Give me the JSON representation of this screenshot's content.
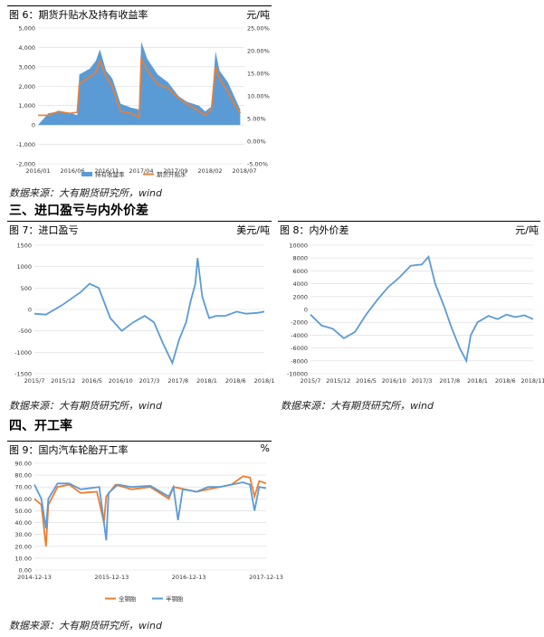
{
  "sections": {
    "s3": "三、进口盈亏与内外价差",
    "s4": "四、开工率"
  },
  "source_text": "数据来源：大有期货研究所，wind",
  "chart_data": [
    {
      "id": "fig6",
      "type": "area",
      "title": "图 6：期货升贴水及持有收益率",
      "unit": "元/吨",
      "x_ticks": [
        "2016/01",
        "2016/06",
        "2016/11",
        "2017/04",
        "2017/09",
        "2018/02",
        "2018/07"
      ],
      "y_left": {
        "min": -2000,
        "max": 5000,
        "ticks": [
          "-2,000",
          "-1,000",
          "0",
          "1,000",
          "2,000",
          "3,000",
          "4,000",
          "5,000"
        ]
      },
      "y_right": {
        "min": -5,
        "max": 25,
        "ticks": [
          "-5.00%",
          "0.00%",
          "5.00%",
          "10.00%",
          "15.00%",
          "20.00%",
          "25.00%"
        ]
      },
      "legend": [
        "持有收益率",
        "期货升贴水"
      ],
      "colors": {
        "area": "#5b9bd5",
        "line": "#ed7d31"
      },
      "series": [
        {
          "name": "持有收益率",
          "axis": "left",
          "points": [
            [
              0,
              0
            ],
            [
              0.05,
              600
            ],
            [
              0.1,
              700
            ],
            [
              0.15,
              650
            ],
            [
              0.19,
              500
            ],
            [
              0.2,
              2600
            ],
            [
              0.25,
              2900
            ],
            [
              0.28,
              3300
            ],
            [
              0.3,
              3900
            ],
            [
              0.33,
              2800
            ],
            [
              0.36,
              2400
            ],
            [
              0.4,
              1100
            ],
            [
              0.45,
              900
            ],
            [
              0.49,
              800
            ],
            [
              0.5,
              4300
            ],
            [
              0.53,
              3400
            ],
            [
              0.58,
              2600
            ],
            [
              0.63,
              2200
            ],
            [
              0.68,
              1500
            ],
            [
              0.72,
              1200
            ],
            [
              0.78,
              1000
            ],
            [
              0.81,
              700
            ],
            [
              0.84,
              950
            ],
            [
              0.86,
              3800
            ],
            [
              0.88,
              2800
            ],
            [
              0.92,
              2200
            ],
            [
              0.95,
              1500
            ],
            [
              0.98,
              800
            ]
          ]
        },
        {
          "name": "期货升贴水",
          "axis": "left",
          "points": [
            [
              0,
              500
            ],
            [
              0.05,
              500
            ],
            [
              0.1,
              700
            ],
            [
              0.15,
              600
            ],
            [
              0.19,
              650
            ],
            [
              0.2,
              2100
            ],
            [
              0.25,
              2500
            ],
            [
              0.28,
              2700
            ],
            [
              0.3,
              3300
            ],
            [
              0.33,
              2500
            ],
            [
              0.36,
              2000
            ],
            [
              0.4,
              700
            ],
            [
              0.45,
              600
            ],
            [
              0.49,
              400
            ],
            [
              0.5,
              3400
            ],
            [
              0.53,
              2800
            ],
            [
              0.58,
              2100
            ],
            [
              0.63,
              1900
            ],
            [
              0.68,
              1400
            ],
            [
              0.72,
              1100
            ],
            [
              0.78,
              700
            ],
            [
              0.81,
              500
            ],
            [
              0.84,
              800
            ],
            [
              0.86,
              3000
            ],
            [
              0.88,
              2400
            ],
            [
              0.92,
              1700
            ],
            [
              0.95,
              1100
            ],
            [
              0.98,
              600
            ]
          ]
        }
      ]
    },
    {
      "id": "fig7",
      "type": "line",
      "title": "图 7：进口盈亏",
      "unit": "美元/吨",
      "x_ticks": [
        "2015/7",
        "2015/12",
        "2016/5",
        "2016/10",
        "2017/3",
        "2017/8",
        "2018/1",
        "2018/6",
        "2018/1"
      ],
      "y": {
        "min": -1500,
        "max": 1500,
        "ticks": [
          "-1500",
          "-1000",
          "-500",
          "0",
          "500",
          "1000",
          "1500"
        ]
      },
      "color": "#5b9bd5",
      "points": [
        [
          0,
          -100
        ],
        [
          0.05,
          -120
        ],
        [
          0.12,
          100
        ],
        [
          0.2,
          400
        ],
        [
          0.24,
          600
        ],
        [
          0.28,
          500
        ],
        [
          0.33,
          -200
        ],
        [
          0.38,
          -500
        ],
        [
          0.43,
          -300
        ],
        [
          0.48,
          -150
        ],
        [
          0.52,
          -300
        ],
        [
          0.56,
          -800
        ],
        [
          0.6,
          -1250
        ],
        [
          0.63,
          -700
        ],
        [
          0.66,
          -300
        ],
        [
          0.68,
          200
        ],
        [
          0.7,
          600
        ],
        [
          0.71,
          1200
        ],
        [
          0.73,
          300
        ],
        [
          0.76,
          -200
        ],
        [
          0.79,
          -150
        ],
        [
          0.83,
          -150
        ],
        [
          0.88,
          -50
        ],
        [
          0.92,
          -100
        ],
        [
          0.97,
          -80
        ],
        [
          1,
          -50
        ]
      ]
    },
    {
      "id": "fig8",
      "type": "line",
      "title": "图 8：内外价差",
      "unit": "元/吨",
      "x_ticks": [
        "2015/7",
        "2015/12",
        "2016/5",
        "2016/10",
        "2017/3",
        "2017/8",
        "2018/1",
        "2018/6",
        "2018/11"
      ],
      "y": {
        "min": -10000,
        "max": 10000,
        "ticks": [
          "-10000",
          "-8000",
          "-6000",
          "-4000",
          "-2000",
          "0",
          "2000",
          "4000",
          "6000",
          "8000",
          "10000"
        ]
      },
      "color": "#5b9bd5",
      "points": [
        [
          0,
          -800
        ],
        [
          0.05,
          -2500
        ],
        [
          0.1,
          -3000
        ],
        [
          0.15,
          -4500
        ],
        [
          0.2,
          -3500
        ],
        [
          0.25,
          -800
        ],
        [
          0.3,
          1500
        ],
        [
          0.35,
          3500
        ],
        [
          0.4,
          5000
        ],
        [
          0.45,
          6800
        ],
        [
          0.5,
          7000
        ],
        [
          0.53,
          8200
        ],
        [
          0.56,
          4000
        ],
        [
          0.6,
          500
        ],
        [
          0.63,
          -2500
        ],
        [
          0.67,
          -6000
        ],
        [
          0.7,
          -8000
        ],
        [
          0.72,
          -4000
        ],
        [
          0.75,
          -2000
        ],
        [
          0.8,
          -1000
        ],
        [
          0.84,
          -1500
        ],
        [
          0.88,
          -800
        ],
        [
          0.92,
          -1200
        ],
        [
          0.96,
          -900
        ],
        [
          1,
          -1500
        ]
      ]
    },
    {
      "id": "fig9",
      "type": "line",
      "title": "图 9：国内汽车轮胎开工率",
      "unit": "%",
      "x_ticks": [
        "2014-12-13",
        "2015-12-13",
        "2016-12-13",
        "2017-12-13"
      ],
      "y": {
        "min": 0,
        "max": 90,
        "ticks": [
          "0.00",
          "10.00",
          "20.00",
          "30.00",
          "40.00",
          "50.00",
          "60.00",
          "70.00",
          "80.00",
          "90.00"
        ]
      },
      "legend": [
        "全钢胎",
        "半钢胎"
      ],
      "series": [
        {
          "name": "全钢胎",
          "color": "#ed7d31",
          "points": [
            [
              0,
              60
            ],
            [
              0.03,
              55
            ],
            [
              0.05,
              20
            ],
            [
              0.06,
              55
            ],
            [
              0.1,
              70
            ],
            [
              0.15,
              72
            ],
            [
              0.2,
              65
            ],
            [
              0.27,
              66
            ],
            [
              0.3,
              40
            ],
            [
              0.31,
              62
            ],
            [
              0.35,
              72
            ],
            [
              0.42,
              68
            ],
            [
              0.5,
              70
            ],
            [
              0.58,
              60
            ],
            [
              0.6,
              70
            ],
            [
              0.65,
              68
            ],
            [
              0.7,
              66
            ],
            [
              0.75,
              68
            ],
            [
              0.8,
              70
            ],
            [
              0.85,
              72
            ],
            [
              0.9,
              79
            ],
            [
              0.93,
              78
            ],
            [
              0.95,
              62
            ],
            [
              0.97,
              75
            ],
            [
              1,
              73
            ]
          ]
        },
        {
          "name": "半钢胎",
          "color": "#5b9bd5",
          "points": [
            [
              0,
              72
            ],
            [
              0.03,
              60
            ],
            [
              0.05,
              35
            ],
            [
              0.06,
              60
            ],
            [
              0.1,
              73
            ],
            [
              0.15,
              73
            ],
            [
              0.2,
              68
            ],
            [
              0.28,
              70
            ],
            [
              0.31,
              25
            ],
            [
              0.32,
              65
            ],
            [
              0.36,
              72
            ],
            [
              0.42,
              70
            ],
            [
              0.5,
              71
            ],
            [
              0.58,
              62
            ],
            [
              0.6,
              70
            ],
            [
              0.62,
              42
            ],
            [
              0.64,
              68
            ],
            [
              0.7,
              66
            ],
            [
              0.75,
              70
            ],
            [
              0.8,
              70
            ],
            [
              0.85,
              72
            ],
            [
              0.9,
              74
            ],
            [
              0.93,
              72
            ],
            [
              0.95,
              50
            ],
            [
              0.97,
              70
            ],
            [
              1,
              69
            ]
          ]
        }
      ]
    }
  ]
}
